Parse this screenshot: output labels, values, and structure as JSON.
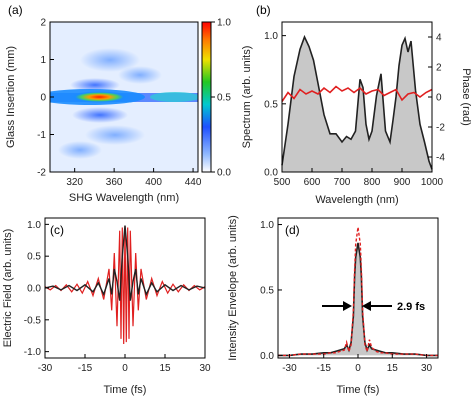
{
  "colors": {
    "red": "#e02020",
    "black": "#222222",
    "fill_gray": "#c8c8c8"
  },
  "chart_data": [
    {
      "id": "a",
      "panel_label": "(a)",
      "type": "heatmap",
      "xlabel": "SHG Wavelength (nm)",
      "ylabel": "Glass Insertion (mm)",
      "xlim": [
        295,
        445
      ],
      "ylim": [
        -2,
        2
      ],
      "xticks": [
        "320",
        "360",
        "400",
        "440"
      ],
      "xtick_values": [
        320,
        360,
        400,
        440
      ],
      "yticks": [
        "-2",
        "-1",
        "0",
        "1",
        "2"
      ],
      "ytick_values": [
        -2,
        -1,
        0,
        1,
        2
      ],
      "colorbar": {
        "min": 0.0,
        "max": 1.0,
        "ticks": [
          "0.0",
          "0.5",
          "1.0"
        ],
        "tick_values": [
          0,
          0.5,
          1
        ]
      },
      "peak": {
        "x": 345,
        "y": 0,
        "value": 1.0
      }
    },
    {
      "id": "b",
      "panel_label": "(b)",
      "type": "area",
      "xlabel": "Wavelength (nm)",
      "ylabel": "Spectrum (arb. units)",
      "y2label": "Phase (rad)",
      "xlim": [
        500,
        1000
      ],
      "ylim": [
        0,
        1.1
      ],
      "y2lim": [
        -5,
        5
      ],
      "xticks": [
        "500",
        "600",
        "700",
        "800",
        "900",
        "1000"
      ],
      "xtick_values": [
        500,
        600,
        700,
        800,
        900,
        1000
      ],
      "yticks": [
        "0.0",
        "0.5",
        "1.0"
      ],
      "ytick_values": [
        0,
        0.5,
        1.0
      ],
      "y2ticks": [
        "-4",
        "-2",
        "0",
        "2",
        "4"
      ],
      "y2tick_values": [
        -4,
        -2,
        0,
        2,
        4
      ],
      "series": [
        {
          "x": [
            500,
            520,
            540,
            560,
            575,
            590,
            605,
            620,
            640,
            660,
            680,
            700,
            715,
            730,
            745,
            760,
            770,
            780,
            790,
            800,
            815,
            830,
            845,
            860,
            870,
            880,
            890,
            900,
            910,
            920,
            930,
            945,
            960,
            975,
            990,
            1000
          ],
          "values": [
            0.05,
            0.35,
            0.7,
            0.9,
            0.99,
            0.92,
            0.82,
            0.65,
            0.42,
            0.28,
            0.28,
            0.22,
            0.26,
            0.24,
            0.3,
            0.68,
            0.62,
            0.35,
            0.24,
            0.3,
            0.56,
            0.72,
            0.3,
            0.22,
            0.38,
            0.55,
            0.78,
            0.93,
            0.98,
            0.88,
            0.96,
            0.6,
            0.35,
            0.22,
            0.08,
            0.02
          ]
        },
        {
          "axis": "y2",
          "x": [
            500,
            520,
            540,
            560,
            580,
            600,
            620,
            640,
            660,
            680,
            700,
            720,
            740,
            760,
            780,
            800,
            820,
            840,
            860,
            880,
            900,
            920,
            940,
            960,
            980,
            1000
          ],
          "values": [
            -0.3,
            0.3,
            -0.1,
            0.5,
            0.2,
            0.4,
            0.2,
            0.6,
            0.3,
            0.7,
            0.4,
            0.6,
            0.3,
            0.6,
            0.2,
            0.4,
            0.5,
            0.1,
            0.3,
            0.5,
            -0.2,
            0.2,
            0.3,
            0.0,
            0.3,
            0.5
          ]
        }
      ]
    },
    {
      "id": "c",
      "panel_label": "(c)",
      "type": "line",
      "xlabel": "Time (fs)",
      "ylabel": "Electric Field (arb. units)",
      "xlim": [
        -30,
        30
      ],
      "ylim": [
        -1.1,
        1.1
      ],
      "xticks": [
        "-30",
        "-15",
        "0",
        "15",
        "30"
      ],
      "xtick_values": [
        -30,
        -15,
        0,
        15,
        30
      ],
      "yticks": [
        "-1.0",
        "-0.5",
        "0.0",
        "0.5",
        "1.0"
      ],
      "ytick_values": [
        -1.0,
        -0.5,
        0.0,
        0.5,
        1.0
      ],
      "series": [
        {
          "x": [
            -30,
            -27,
            -24,
            -21,
            -18,
            -15,
            -12,
            -10,
            -8,
            -6,
            -5,
            -4,
            -3,
            -2,
            -1,
            0,
            1,
            2,
            3,
            4,
            5,
            6,
            8,
            10,
            12,
            15,
            18,
            21,
            24,
            27,
            30
          ],
          "values": [
            0.0,
            0.03,
            -0.03,
            0.04,
            -0.04,
            0.05,
            -0.06,
            0.08,
            -0.1,
            0.15,
            -0.1,
            0.3,
            0.1,
            -0.2,
            0.5,
            0.98,
            0.5,
            -0.2,
            0.1,
            0.3,
            -0.1,
            0.15,
            -0.1,
            0.08,
            -0.06,
            0.05,
            -0.04,
            0.04,
            -0.03,
            0.03,
            0.0
          ]
        },
        {
          "x": [
            -30,
            -28,
            -26,
            -24,
            -22,
            -20,
            -18,
            -16,
            -14,
            -12,
            -10,
            -8,
            -6,
            -5,
            -4,
            -3,
            -2,
            -1.5,
            -1,
            -0.5,
            0,
            0.5,
            1,
            1.5,
            2,
            3,
            4,
            5,
            6,
            8,
            10,
            12,
            14,
            16,
            18,
            20,
            22,
            24,
            26,
            28,
            30
          ],
          "values": [
            0.02,
            -0.03,
            0.04,
            -0.04,
            0.05,
            -0.06,
            0.06,
            -0.08,
            0.1,
            -0.12,
            0.15,
            -0.18,
            0.3,
            -0.35,
            0.55,
            -0.6,
            0.9,
            -0.8,
            0.95,
            -0.88,
            0.98,
            -0.85,
            0.95,
            -0.8,
            0.9,
            -0.6,
            0.55,
            -0.35,
            0.3,
            -0.18,
            0.15,
            -0.12,
            0.1,
            -0.08,
            0.06,
            -0.06,
            0.05,
            -0.04,
            0.04,
            -0.03,
            0.02
          ]
        }
      ]
    },
    {
      "id": "d",
      "panel_label": "(d)",
      "type": "area",
      "xlabel": "Time (fs)",
      "ylabel": "Intensity Envelope (arb. units)",
      "xlim": [
        -35,
        35
      ],
      "ylim": [
        -0.02,
        1.05
      ],
      "xticks": [
        "-30",
        "-15",
        "0",
        "15",
        "30"
      ],
      "xtick_values": [
        -30,
        -15,
        0,
        15,
        30
      ],
      "yticks": [
        "0.0",
        "0.5",
        "1.0"
      ],
      "ytick_values": [
        0.0,
        0.5,
        1.0
      ],
      "annotation": "2.9 fs",
      "series": [
        {
          "x": [
            -35,
            -30,
            -25,
            -20,
            -15,
            -12,
            -10,
            -8,
            -6,
            -5,
            -4,
            -3,
            -2,
            -1.5,
            -1,
            0,
            1,
            1.5,
            2,
            3,
            4,
            5,
            6,
            8,
            10,
            12,
            15,
            20,
            25,
            30,
            35
          ],
          "values": [
            0.0,
            0.0,
            0.01,
            0.01,
            0.02,
            0.02,
            0.03,
            0.04,
            0.05,
            0.08,
            0.04,
            0.1,
            0.3,
            0.6,
            0.75,
            0.86,
            0.75,
            0.6,
            0.3,
            0.1,
            0.04,
            0.08,
            0.05,
            0.04,
            0.03,
            0.02,
            0.02,
            0.01,
            0.01,
            0.0,
            0.0
          ]
        },
        {
          "x": [
            -35,
            -30,
            -25,
            -20,
            -15,
            -12,
            -10,
            -8,
            -6,
            -5,
            -4,
            -3,
            -2,
            -1.5,
            -1,
            0,
            1,
            1.5,
            2,
            3,
            4,
            5,
            6,
            8,
            10,
            12,
            15,
            20,
            25,
            30,
            35
          ],
          "values": [
            0.0,
            0.0,
            0.01,
            0.01,
            0.01,
            0.02,
            0.02,
            0.03,
            0.04,
            0.1,
            0.03,
            0.08,
            0.35,
            0.65,
            0.85,
            0.98,
            0.85,
            0.65,
            0.35,
            0.08,
            0.03,
            0.12,
            0.06,
            0.03,
            0.02,
            0.02,
            0.01,
            0.01,
            0.01,
            0.0,
            0.0
          ]
        }
      ]
    }
  ]
}
